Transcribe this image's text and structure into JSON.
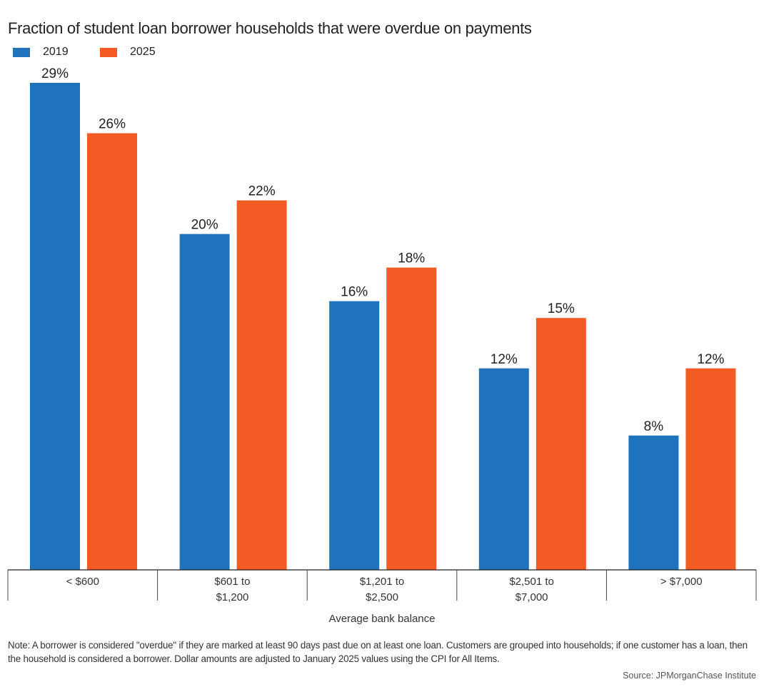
{
  "chart_data": {
    "type": "bar",
    "title": "Fraction of student loan borrower households that were overdue on payments",
    "xlabel": "Average bank balance",
    "ylabel": "",
    "categories": [
      [
        "< $600"
      ],
      [
        "$601 to",
        "$1,200"
      ],
      [
        "$1,201 to",
        "$2,500"
      ],
      [
        "$2,501 to",
        "$7,000"
      ],
      [
        "> $7,000"
      ]
    ],
    "series": [
      {
        "name": "2019",
        "color": "#1f72bc",
        "values": [
          29,
          20,
          16,
          12,
          8
        ],
        "labels": [
          "29%",
          "20%",
          "16%",
          "12%",
          "8%"
        ]
      },
      {
        "name": "2025",
        "color": "#f35a24",
        "values": [
          26,
          22,
          18,
          15,
          12
        ],
        "labels": [
          "26%",
          "22%",
          "18%",
          "15%",
          "12%"
        ]
      }
    ],
    "ylim": [
      0,
      29
    ],
    "grid": false,
    "legend_position": "top-left"
  },
  "note": "Note: A borrower is considered \"overdue\" if they are marked at least 90 days past due on at least one loan. Customers are grouped into households; if one customer has a loan, then the household is considered a borrower. Dollar amounts are adjusted to January 2025 values using the CPI for All Items.",
  "source": "Source: JPMorganChase Institute"
}
